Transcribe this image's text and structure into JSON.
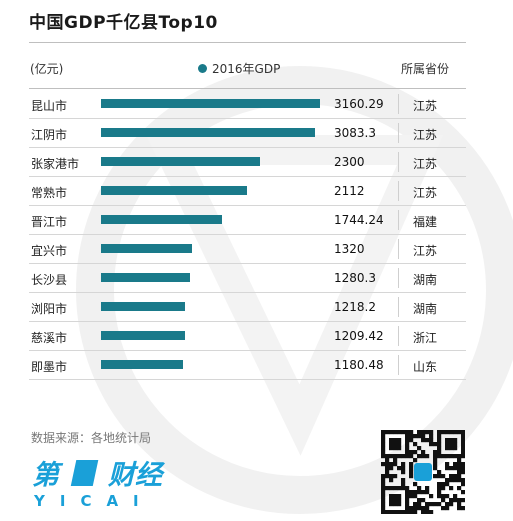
{
  "title": "中国GDP千亿县Top10",
  "unit_label": "(亿元)",
  "province_header": "所属省份",
  "source": "数据来源：各地统计局",
  "logo": {
    "top": "第一财经",
    "bottom": "YICAI"
  },
  "colors": {
    "bar": "#1a7a8a",
    "accent": "#1aa0d8"
  },
  "chart_data": {
    "type": "bar",
    "orientation": "horizontal",
    "xlim": [
      0,
      3350
    ],
    "categories": [
      "昆山市",
      "江阴市",
      "张家港市",
      "常熟市",
      "晋江市",
      "宜兴市",
      "长沙县",
      "浏阳市",
      "慈溪市",
      "即墨市"
    ],
    "series": [
      {
        "name": "2016年GDP",
        "values": [
          3160.29,
          3083.3,
          2300,
          2112,
          1744.24,
          1320,
          1280.3,
          1218.2,
          1209.42,
          1180.48
        ],
        "labels": [
          "3160.29",
          "3083.3",
          "2300",
          "2112",
          "1744.24",
          "1320",
          "1280.3",
          "1218.2",
          "1209.42",
          "1180.48"
        ]
      }
    ],
    "provinces": [
      "江苏",
      "江苏",
      "江苏",
      "江苏",
      "福建",
      "江苏",
      "湖南",
      "湖南",
      "浙江",
      "山东"
    ]
  }
}
